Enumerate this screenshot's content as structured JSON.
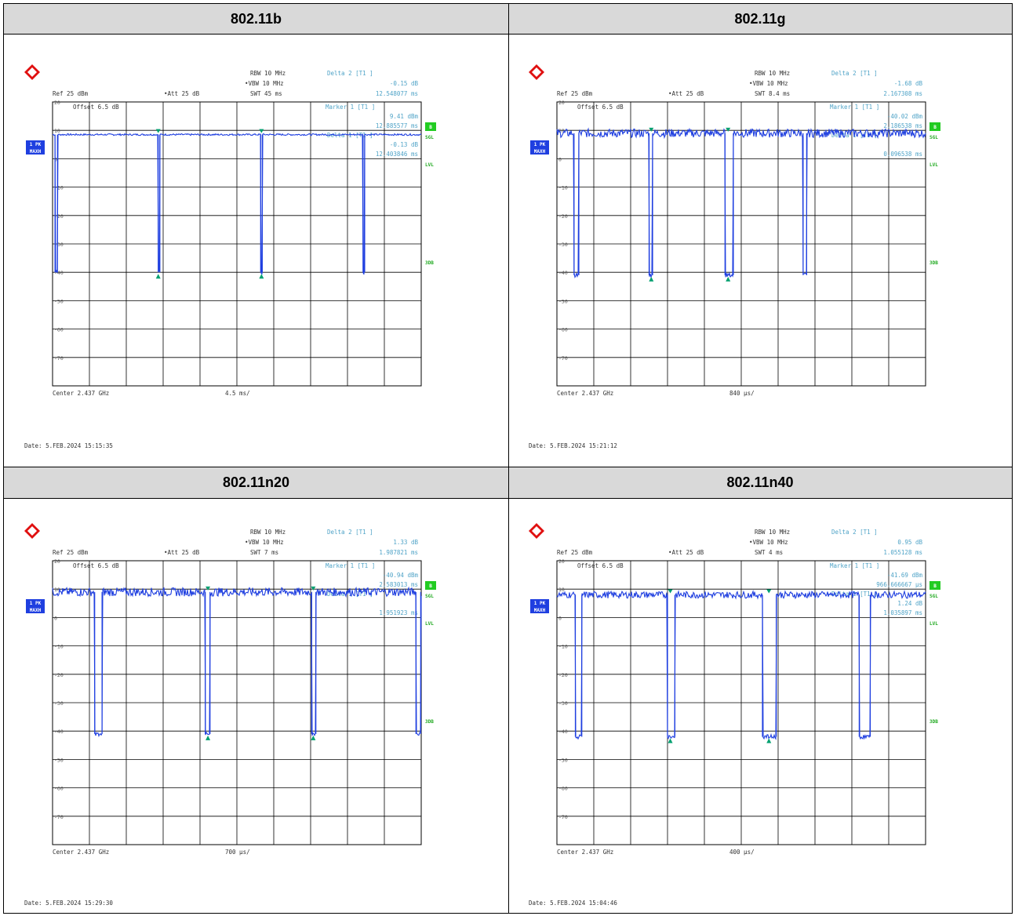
{
  "table": {
    "headers": [
      "802.11b",
      "802.11g",
      "802.11n20",
      "802.11n40"
    ]
  },
  "colors": {
    "trace": "#1f3fe0",
    "marker": "#00a070",
    "annotation": "#4fa3c7",
    "side_label": "#22aa22",
    "badge_blue": "#1f3fe0",
    "badge_green": "#22cc22",
    "header_bg": "#d9d9d9"
  },
  "icons": {
    "logo": "rohde-schwarz-logo"
  },
  "chart_data": [
    {
      "type": "line",
      "title": "802.11b",
      "ref": "Ref  25 dBm",
      "offset": "Offset   6.5 dB",
      "att": "Att  25 dB",
      "rbw": "RBW  10 MHz",
      "vbw": "VBW  10 MHz",
      "swt": "SWT  45 ms",
      "markers": [
        {
          "label": "Delta 2 [T1 ]",
          "level": "-0.15 dB",
          "time": "12.548077 ms"
        },
        {
          "label": "Marker 1 [T1 ]",
          "level": "9.41 dBm",
          "time": "12.885577 ms"
        },
        {
          "label": "Delta 1 [T1 ]",
          "level": "-0.13 dB",
          "time": "12.403846 ms"
        }
      ],
      "yticks": [
        "20",
        "10",
        "0",
        "-10",
        "-20",
        "-30",
        "-40",
        "-50",
        "-60",
        "-70"
      ],
      "ylim": [
        -80,
        20
      ],
      "xlabel": "Center 2.437 GHz",
      "xdiv": "4.5 ms/",
      "sweep_ms": 45,
      "on_level_dbm": 8.5,
      "off_level_dbm": -40,
      "gaps_ms": [
        [
          0.3,
          0.6
        ],
        [
          12.9,
          13.1
        ],
        [
          25.4,
          25.6
        ],
        [
          37.9,
          38.1
        ]
      ],
      "trace_noise": 0.3,
      "marker_positions_ms": [
        12.9,
        25.5
      ],
      "side_labels": [
        "1 PK",
        "MAXH",
        "B",
        "SGL",
        "LVL",
        "3DB"
      ],
      "date": "Date: 5.FEB.2024  15:15:35"
    },
    {
      "type": "line",
      "title": "802.11g",
      "ref": "Ref  25 dBm",
      "offset": "Offset   6.5 dB",
      "att": "Att  25 dB",
      "rbw": "RBW  10 MHz",
      "vbw": "VBW  10 MHz",
      "swt": "SWT  8.4 ms",
      "markers": [
        {
          "label": "Delta 2 [T1 ]",
          "level": "-1.68 dB",
          "time": "2.167308 ms"
        },
        {
          "label": "Marker 1 [T1 ]",
          "level": "-40.02 dBm",
          "time": "2.186538 ms"
        },
        {
          "label": "Delta 1 [T1 ]",
          "level": "",
          "time": "0.096538 ms"
        }
      ],
      "yticks": [
        "20",
        "10",
        "0",
        "-10",
        "-20",
        "-30",
        "-40",
        "-50",
        "-60",
        "-70"
      ],
      "ylim": [
        -80,
        20
      ],
      "xlabel": "Center 2.437 GHz",
      "xdiv": "840 µs/",
      "sweep_ms": 8.4,
      "on_level_dbm": 9,
      "off_level_dbm": -41,
      "gaps_ms": [
        [
          0.39,
          0.5
        ],
        [
          2.1,
          2.18
        ],
        [
          3.83,
          4.02
        ],
        [
          5.61,
          5.69
        ]
      ],
      "trace_noise": 1.5,
      "marker_positions_ms": [
        2.15,
        3.9
      ],
      "side_labels": [
        "1 PK",
        "MAXH",
        "B",
        "SGL",
        "LVL",
        "3DB"
      ],
      "date": "Date: 5.FEB.2024  15:21:12"
    },
    {
      "type": "line",
      "title": "802.11n20",
      "ref": "Ref  25 dBm",
      "offset": "Offset   6.5 dB",
      "att": "Att  25 dB",
      "rbw": "RBW  10 MHz",
      "vbw": "VBW  10 MHz",
      "swt": "SWT  7 ms",
      "markers": [
        {
          "label": "Delta 2 [T1 ]",
          "level": "1.33 dB",
          "time": "1.987821 ms"
        },
        {
          "label": "Marker 1 [T1 ]",
          "level": "-40.94 dBm",
          "time": "2.583013 ms"
        },
        {
          "label": "Delta 1 [T1 ]",
          "level": "",
          "time": "1.951923 ms"
        }
      ],
      "yticks": [
        "20",
        "10",
        "0",
        "-10",
        "-20",
        "-30",
        "-40",
        "-50",
        "-60",
        "-70"
      ],
      "ylim": [
        -80,
        20
      ],
      "xlabel": "Center 2.437 GHz",
      "xdiv": "700 µs/",
      "sweep_ms": 7,
      "on_level_dbm": 9,
      "off_level_dbm": -41,
      "gaps_ms": [
        [
          0.8,
          0.94
        ],
        [
          2.9,
          2.99
        ],
        [
          4.92,
          5.0
        ],
        [
          6.9,
          6.99
        ]
      ],
      "trace_noise": 1.5,
      "marker_positions_ms": [
        2.95,
        4.95
      ],
      "side_labels": [
        "1 PK",
        "MAXH",
        "B",
        "SGL",
        "LVL",
        "3DB"
      ],
      "date": "Date: 5.FEB.2024  15:29:30"
    },
    {
      "type": "line",
      "title": "802.11n40",
      "ref": "Ref  25 dBm",
      "offset": "Offset   6.5 dB",
      "att": "Att  25 dB",
      "rbw": "RBW  10 MHz",
      "vbw": "VBW  10 MHz",
      "swt": "SWT  4 ms",
      "markers": [
        {
          "label": "Delta 2 [T1 ]",
          "level": "0.95 dB",
          "time": "1.055128 ms"
        },
        {
          "label": "Marker 1 [T1 ]",
          "level": "-41.69 dBm",
          "time": "966.666667 µs"
        },
        {
          "label": "Delta 1 [T1 ]",
          "level": "1.24 dB",
          "time": "1.035897 ms"
        }
      ],
      "yticks": [
        "20",
        "10",
        "0",
        "-10",
        "-20",
        "-30",
        "-40",
        "-50",
        "-60",
        "-70"
      ],
      "ylim": [
        -80,
        20
      ],
      "xlabel": "Center 2.437 GHz",
      "xdiv": "400 µs/",
      "sweep_ms": 4,
      "on_level_dbm": 8,
      "off_level_dbm": -42,
      "gaps_ms": [
        [
          0.2,
          0.27
        ],
        [
          1.2,
          1.28
        ],
        [
          2.23,
          2.38
        ],
        [
          3.28,
          3.4
        ]
      ],
      "trace_noise": 1.2,
      "marker_positions_ms": [
        1.23,
        2.3
      ],
      "side_labels": [
        "1 PK",
        "MAXH",
        "B",
        "SGL",
        "LVL",
        "3DB"
      ],
      "date": "Date: 5.FEB.2024  15:04:46"
    }
  ]
}
